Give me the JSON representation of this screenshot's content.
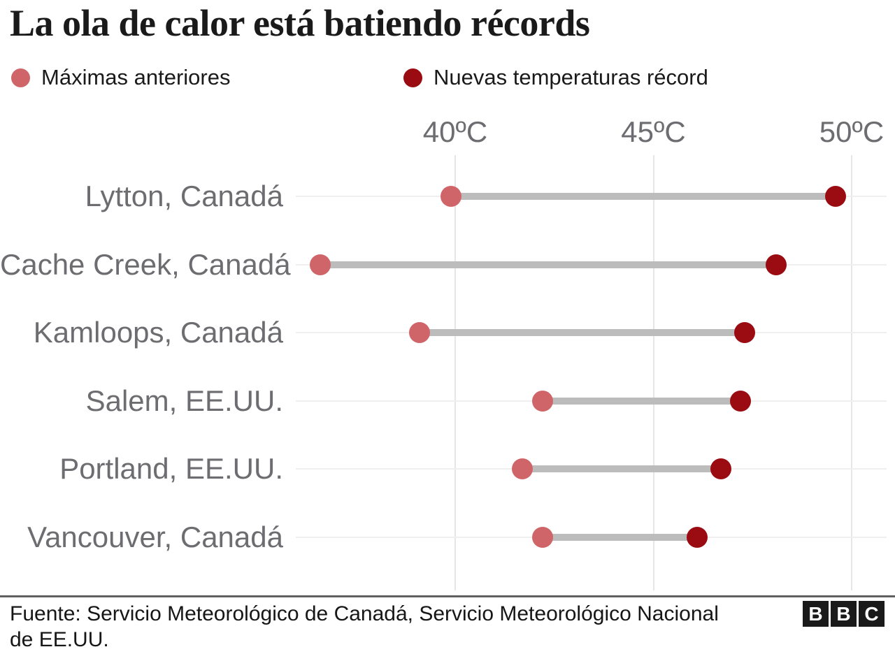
{
  "title": "La ola de calor está batiendo récords",
  "legend": {
    "previous": {
      "label": "Máximas anteriores",
      "color": "#d06569"
    },
    "record": {
      "label": "Nuevas temperaturas récord",
      "color": "#9a0c11"
    }
  },
  "chart_data": {
    "type": "dumbbell",
    "title": "La ola de calor está batiendo récords",
    "unit": "ºC",
    "x_axis": {
      "ticks": [
        40,
        45,
        50
      ],
      "tick_labels": [
        "40ºC",
        "45ºC",
        "50ºC"
      ],
      "min": 35.9,
      "max": 50.9,
      "grid": true
    },
    "legend_position": "top",
    "series_names": [
      "Máximas anteriores",
      "Nuevas temperaturas récord"
    ],
    "categories": [
      "Lytton, Canadá",
      "Cache Creek, Canadá",
      "Kamloops, Canadá",
      "Salem, EE.UU.",
      "Portland, EE.UU.",
      "Vancouver, Canadá"
    ],
    "rows": [
      {
        "label": "Lytton, Canadá",
        "previous_max": 39.9,
        "new_record": 49.6
      },
      {
        "label": "Cache Creek, Canadá",
        "previous_max": 36.6,
        "new_record": 48.1
      },
      {
        "label": "Kamloops, Canadá",
        "previous_max": 39.1,
        "new_record": 47.3
      },
      {
        "label": "Salem, EE.UU.",
        "previous_max": 42.2,
        "new_record": 47.2
      },
      {
        "label": "Portland, EE.UU.",
        "previous_max": 41.7,
        "new_record": 46.7
      },
      {
        "label": "Vancouver, Canadá",
        "previous_max": 42.2,
        "new_record": 46.1
      }
    ],
    "colors": {
      "previous_dot": "#d06569",
      "record_dot": "#9a0c11",
      "connector": "#bcbcbc",
      "gridline": "#e6e6e6",
      "row_line": "#f0efef",
      "label_gray": "#6d6d71"
    }
  },
  "footer": {
    "source": "Fuente: Servicio Meteorológico de Canadá, Servicio Meteorológico Nacional de EE.UU.",
    "logo_blocks": [
      "B",
      "B",
      "C"
    ]
  }
}
